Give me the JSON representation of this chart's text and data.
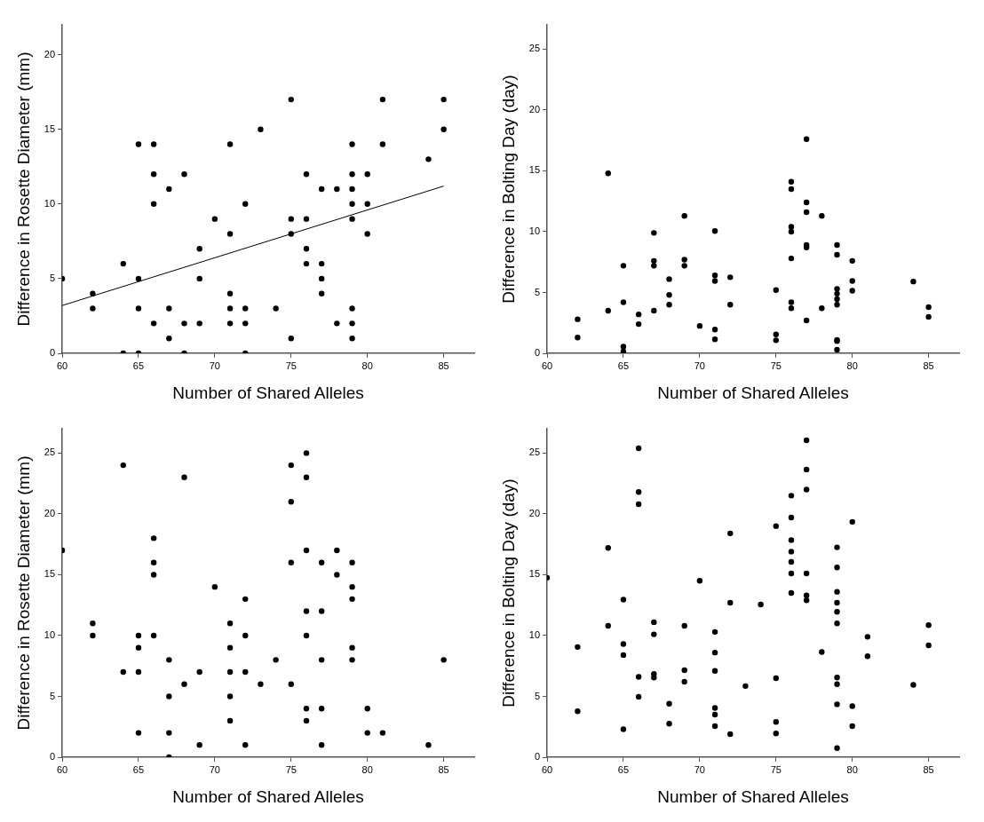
{
  "chart_data": [
    {
      "type": "scatter",
      "xlabel": "Number of Shared Alleles",
      "ylabel": "Difference in Rosette Diameter (mm)",
      "xlim": [
        60,
        87
      ],
      "ylim": [
        0,
        22
      ],
      "xticks": [
        60,
        65,
        70,
        75,
        80,
        85
      ],
      "yticks": [
        0,
        5,
        10,
        15,
        20
      ],
      "grid": false,
      "legend": false,
      "marker": "circle",
      "series": [
        {
          "color": "#000000",
          "x": [
            60,
            62,
            62,
            64,
            64,
            65,
            65,
            65,
            65,
            66,
            66,
            66,
            66,
            67,
            67,
            67,
            68,
            68,
            68,
            69,
            69,
            69,
            70,
            71,
            71,
            71,
            71,
            71,
            72,
            72,
            72,
            72,
            73,
            74,
            75,
            75,
            75,
            75,
            76,
            76,
            76,
            76,
            77,
            77,
            77,
            77,
            78,
            78,
            79,
            79,
            79,
            79,
            79,
            79,
            79,
            79,
            80,
            80,
            80,
            81,
            81,
            84,
            85,
            85
          ],
          "values": [
            5,
            4,
            3,
            6,
            0,
            14,
            5,
            3,
            0,
            14,
            12,
            10,
            2,
            11,
            3,
            1,
            12,
            2,
            0,
            7,
            5,
            2,
            9,
            14,
            8,
            4,
            3,
            2,
            10,
            3,
            2,
            0,
            15,
            3,
            17,
            9,
            8,
            1,
            12,
            9,
            7,
            6,
            11,
            6,
            5,
            4,
            11,
            2,
            14,
            12,
            11,
            10,
            9,
            3,
            2,
            1,
            12,
            10,
            8,
            17,
            14,
            13,
            17,
            15
          ]
        },
        {
          "type": "line",
          "color": "#000000",
          "marker": "none",
          "x": [
            60,
            85
          ],
          "values": [
            3.2,
            11.2
          ]
        }
      ]
    },
    {
      "type": "scatter",
      "xlabel": "Number of Shared Alleles",
      "ylabel": "Difference in Bolting Day (day)",
      "xlim": [
        60,
        87
      ],
      "ylim": [
        0,
        27
      ],
      "xticks": [
        60,
        65,
        70,
        75,
        80,
        85
      ],
      "yticks": [
        0,
        5,
        10,
        15,
        20,
        25
      ],
      "grid": false,
      "legend": false,
      "marker": "circle",
      "series": [
        {
          "color": "#000000",
          "x": [
            62,
            62,
            64,
            64,
            65,
            65,
            65,
            65,
            66,
            66,
            67,
            67,
            67,
            67,
            68,
            68,
            68,
            69,
            69,
            69,
            70,
            71,
            71,
            71,
            71,
            71,
            72,
            72,
            75,
            75,
            75,
            76,
            76,
            76,
            76,
            76,
            76,
            76,
            77,
            77,
            77,
            77,
            77,
            77,
            78,
            78,
            79,
            79,
            79,
            79,
            79,
            79,
            79,
            79,
            79,
            80,
            80,
            80,
            84,
            85,
            85
          ],
          "values": [
            2.8,
            1.3,
            14.8,
            3.5,
            7.2,
            4.2,
            0.55,
            0.15,
            3.2,
            2.4,
            9.9,
            7.6,
            7.2,
            3.5,
            6.1,
            4.8,
            4,
            11.3,
            7.7,
            7.2,
            2.25,
            10.05,
            6.4,
            5.95,
            1.95,
            1.15,
            6.25,
            4,
            5.2,
            1.55,
            1.07,
            14.1,
            13.5,
            10.4,
            10,
            7.8,
            4.2,
            3.7,
            17.6,
            12.4,
            11.6,
            8.9,
            8.7,
            2.7,
            11.3,
            3.7,
            8.9,
            8.1,
            5.3,
            4.9,
            4.45,
            4,
            1.1,
            1,
            0.3,
            7.6,
            5.95,
            5.15,
            5.9,
            3.8,
            3
          ]
        }
      ]
    },
    {
      "type": "scatter",
      "xlabel": "Number of Shared Alleles",
      "ylabel": "Difference in Rosette Diameter (mm)",
      "xlim": [
        60,
        87
      ],
      "ylim": [
        0,
        27
      ],
      "xticks": [
        60,
        65,
        70,
        75,
        80,
        85
      ],
      "yticks": [
        0,
        5,
        10,
        15,
        20,
        25
      ],
      "grid": false,
      "legend": false,
      "marker": "circle",
      "series": [
        {
          "color": "#000000",
          "x": [
            60,
            62,
            62,
            64,
            64,
            65,
            65,
            65,
            65,
            66,
            66,
            66,
            66,
            67,
            67,
            67,
            67,
            68,
            68,
            69,
            69,
            70,
            71,
            71,
            71,
            71,
            71,
            72,
            72,
            72,
            72,
            73,
            74,
            75,
            75,
            75,
            75,
            76,
            76,
            76,
            76,
            76,
            76,
            76,
            77,
            77,
            77,
            77,
            77,
            78,
            78,
            79,
            79,
            79,
            79,
            79,
            80,
            80,
            81,
            84,
            85
          ],
          "values": [
            17,
            11,
            10,
            24,
            7,
            10,
            9,
            7,
            2,
            18,
            16,
            15,
            10,
            8,
            5,
            2,
            0,
            23,
            6,
            7,
            1,
            14,
            11,
            9,
            7,
            5,
            3,
            13,
            10,
            7,
            1,
            6,
            8,
            24,
            21,
            16,
            6,
            25,
            23,
            17,
            12,
            10,
            4,
            3,
            16,
            12,
            8,
            4,
            1,
            17,
            15,
            16,
            14,
            13,
            9,
            8,
            4,
            2,
            2,
            1,
            8
          ]
        }
      ]
    },
    {
      "type": "scatter",
      "xlabel": "Number of Shared Alleles",
      "ylabel": "Difference in Bolting Day (day)",
      "xlim": [
        60,
        87
      ],
      "ylim": [
        0,
        27
      ],
      "xticks": [
        60,
        65,
        70,
        75,
        80,
        85
      ],
      "yticks": [
        0,
        5,
        10,
        15,
        20,
        25
      ],
      "grid": false,
      "legend": false,
      "marker": "circle",
      "series": [
        {
          "color": "#000000",
          "x": [
            60,
            62,
            62,
            64,
            64,
            65,
            65,
            65,
            65,
            66,
            66,
            66,
            66,
            66,
            67,
            67,
            67,
            67,
            68,
            68,
            69,
            69,
            69,
            70,
            71,
            71,
            71,
            71,
            71,
            71,
            72,
            72,
            72,
            73,
            74,
            75,
            75,
            75,
            75,
            76,
            76,
            76,
            76,
            76,
            76,
            76,
            77,
            77,
            77,
            77,
            77,
            77,
            78,
            79,
            79,
            79,
            79,
            79,
            79,
            79,
            79,
            79,
            79,
            80,
            80,
            80,
            81,
            81,
            84,
            85,
            85
          ],
          "values": [
            14.75,
            9.06,
            3.78,
            17.2,
            10.8,
            12.95,
            9.3,
            8.4,
            2.3,
            25.4,
            21.8,
            20.8,
            6.6,
            4.97,
            11.1,
            10.1,
            6.85,
            6.55,
            4.4,
            2.75,
            10.8,
            7.15,
            6.2,
            14.5,
            10.3,
            8.6,
            7.1,
            4.05,
            3.5,
            2.55,
            18.4,
            12.7,
            1.9,
            5.85,
            12.55,
            19,
            6.5,
            2.9,
            1.95,
            21.5,
            19.7,
            17.85,
            16.9,
            16.05,
            15.1,
            13.5,
            26.05,
            23.65,
            22,
            15.1,
            13.3,
            12.9,
            8.65,
            17.25,
            15.6,
            13.6,
            12.7,
            11.95,
            11,
            6.55,
            6,
            4.35,
            0.75,
            19.35,
            4.2,
            2.55,
            9.9,
            8.3,
            5.95,
            10.85,
            9.2
          ]
        }
      ]
    }
  ]
}
